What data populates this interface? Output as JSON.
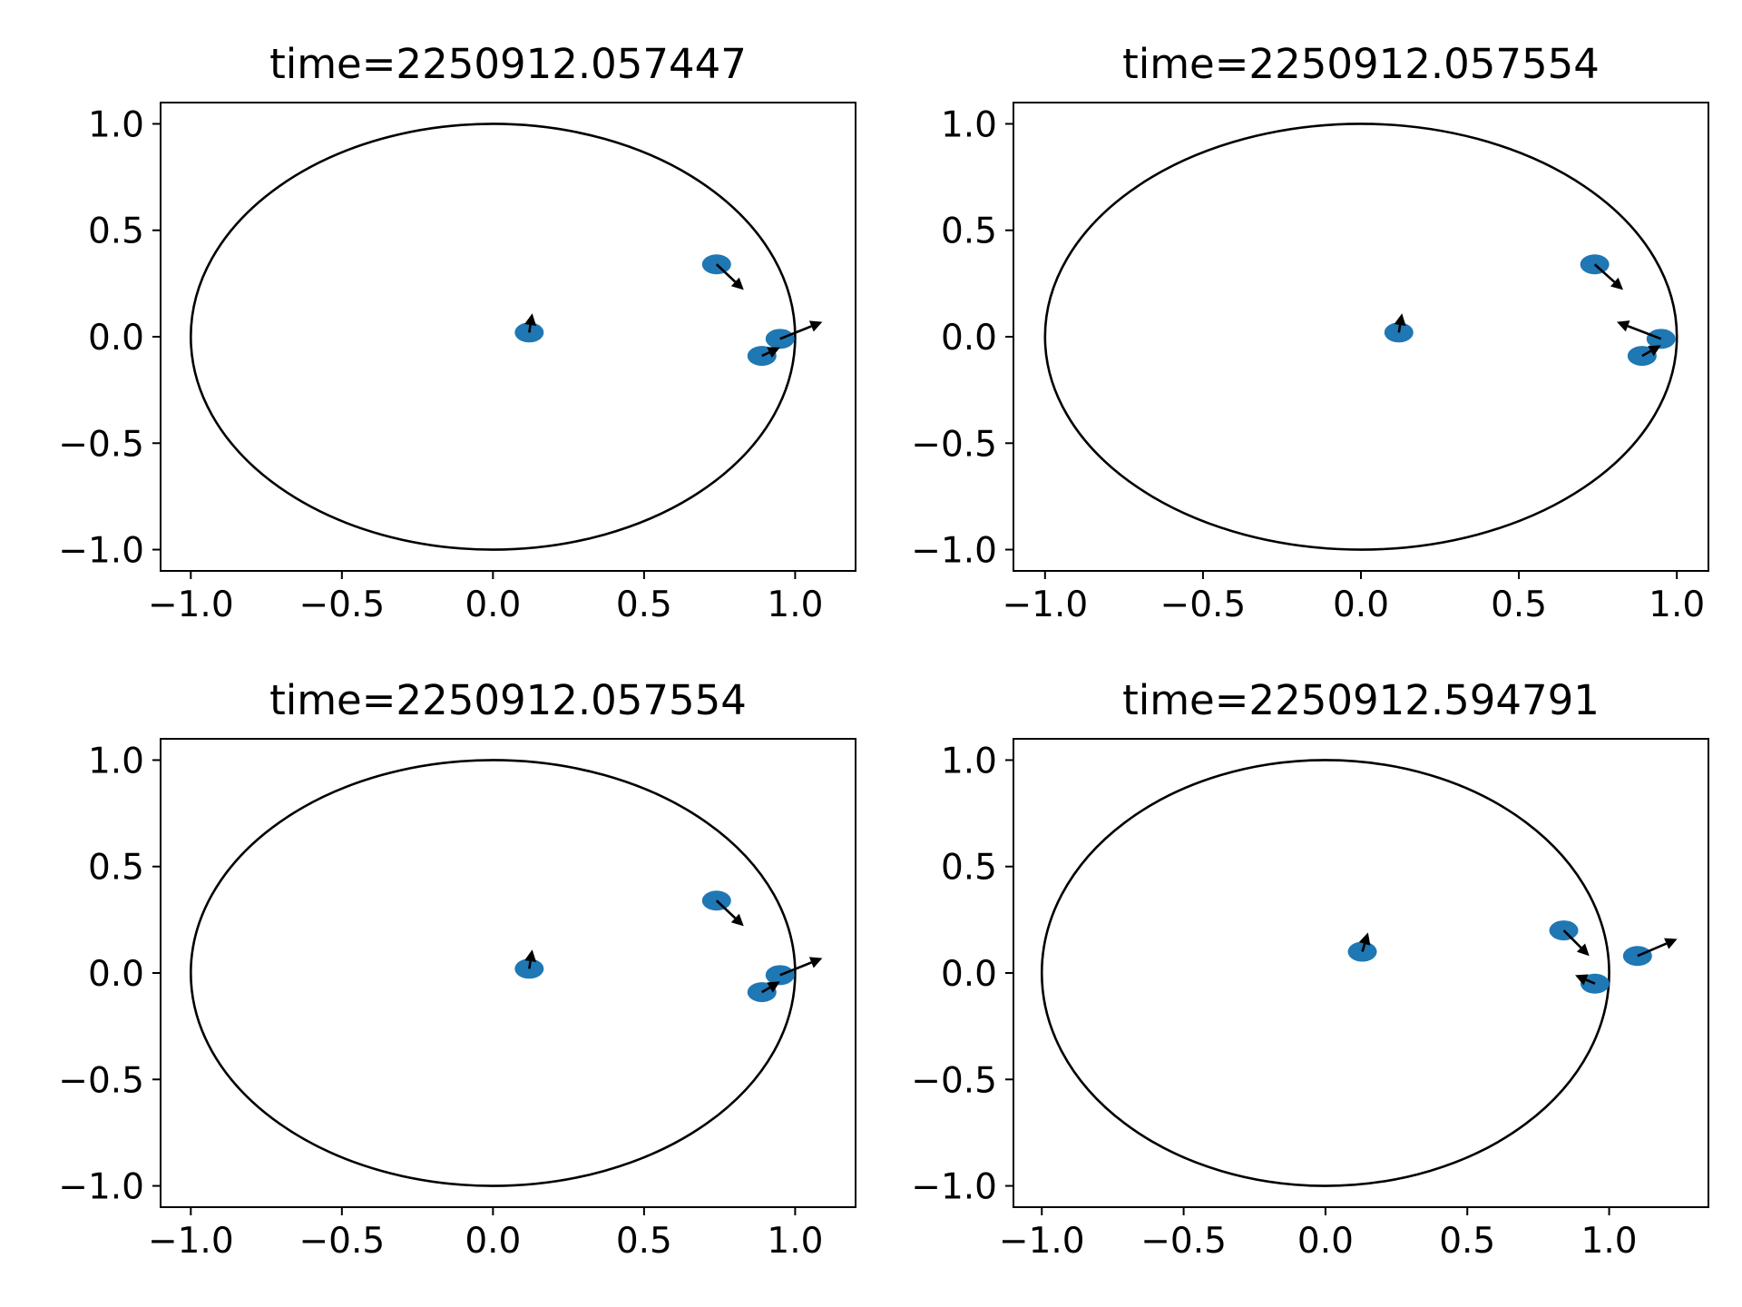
{
  "figure": {
    "marker_color": "#1f77b4",
    "arrow_color": "#000000",
    "circle_color": "#000000"
  },
  "chart_data": [
    {
      "type": "scatter",
      "title": "time=2250912.057447",
      "xlim": [
        -1.1,
        1.2
      ],
      "ylim": [
        -1.1,
        1.1
      ],
      "xticks": [
        -1.0,
        -0.5,
        0.0,
        0.5,
        1.0
      ],
      "yticks": [
        -1.0,
        -0.5,
        0.0,
        0.5,
        1.0
      ],
      "xtick_labels": [
        "−1.0",
        "−0.5",
        "0.0",
        "0.5",
        "1.0"
      ],
      "ytick_labels": [
        "−1.0",
        "−0.5",
        "0.0",
        "0.5",
        "1.0"
      ],
      "boundary_circle": {
        "center": [
          0,
          0
        ],
        "radius": 1.0
      },
      "particles": [
        {
          "x": 0.12,
          "y": 0.02,
          "u": 0.01,
          "v": 0.09
        },
        {
          "x": 0.74,
          "y": 0.34,
          "u": 0.09,
          "v": -0.12
        },
        {
          "x": 0.89,
          "y": -0.09,
          "u": 0.06,
          "v": 0.04
        },
        {
          "x": 0.95,
          "y": -0.01,
          "u": 0.14,
          "v": 0.08
        }
      ]
    },
    {
      "type": "scatter",
      "title": "time=2250912.057554",
      "xlim": [
        -1.1,
        1.1
      ],
      "ylim": [
        -1.1,
        1.1
      ],
      "xticks": [
        -1.0,
        -0.5,
        0.0,
        0.5,
        1.0
      ],
      "yticks": [
        -1.0,
        -0.5,
        0.0,
        0.5,
        1.0
      ],
      "xtick_labels": [
        "−1.0",
        "−0.5",
        "0.0",
        "0.5",
        "1.0"
      ],
      "ytick_labels": [
        "−1.0",
        "−0.5",
        "0.0",
        "0.5",
        "1.0"
      ],
      "boundary_circle": {
        "center": [
          0,
          0
        ],
        "radius": 1.0
      },
      "particles": [
        {
          "x": 0.12,
          "y": 0.02,
          "u": 0.01,
          "v": 0.09
        },
        {
          "x": 0.74,
          "y": 0.34,
          "u": 0.09,
          "v": -0.12
        },
        {
          "x": 0.89,
          "y": -0.09,
          "u": 0.06,
          "v": 0.05
        },
        {
          "x": 0.95,
          "y": -0.01,
          "u": -0.14,
          "v": 0.08
        }
      ]
    },
    {
      "type": "scatter",
      "title": "time=2250912.057554",
      "xlim": [
        -1.1,
        1.2
      ],
      "ylim": [
        -1.1,
        1.1
      ],
      "xticks": [
        -1.0,
        -0.5,
        0.0,
        0.5,
        1.0
      ],
      "yticks": [
        -1.0,
        -0.5,
        0.0,
        0.5,
        1.0
      ],
      "xtick_labels": [
        "−1.0",
        "−0.5",
        "0.0",
        "0.5",
        "1.0"
      ],
      "ytick_labels": [
        "−1.0",
        "−0.5",
        "0.0",
        "0.5",
        "1.0"
      ],
      "boundary_circle": {
        "center": [
          0,
          0
        ],
        "radius": 1.0
      },
      "particles": [
        {
          "x": 0.12,
          "y": 0.02,
          "u": 0.01,
          "v": 0.09
        },
        {
          "x": 0.74,
          "y": 0.34,
          "u": 0.09,
          "v": -0.12
        },
        {
          "x": 0.89,
          "y": -0.09,
          "u": 0.06,
          "v": 0.05
        },
        {
          "x": 0.95,
          "y": -0.01,
          "u": 0.14,
          "v": 0.08
        }
      ]
    },
    {
      "type": "scatter",
      "title": "time=2250912.594791",
      "xlim": [
        -1.1,
        1.35
      ],
      "ylim": [
        -1.1,
        1.1
      ],
      "xticks": [
        -1.0,
        -0.5,
        0.0,
        0.5,
        1.0
      ],
      "yticks": [
        -1.0,
        -0.5,
        0.0,
        0.5,
        1.0
      ],
      "xtick_labels": [
        "−1.0",
        "−0.5",
        "0.0",
        "0.5",
        "1.0"
      ],
      "ytick_labels": [
        "−1.0",
        "−0.5",
        "0.0",
        "0.5",
        "1.0"
      ],
      "boundary_circle": {
        "center": [
          0,
          0
        ],
        "radius": 1.0
      },
      "particles": [
        {
          "x": 0.13,
          "y": 0.1,
          "u": 0.02,
          "v": 0.09
        },
        {
          "x": 0.84,
          "y": 0.2,
          "u": 0.09,
          "v": -0.12
        },
        {
          "x": 0.95,
          "y": -0.05,
          "u": -0.07,
          "v": 0.04
        },
        {
          "x": 1.1,
          "y": 0.08,
          "u": 0.14,
          "v": 0.08
        }
      ]
    }
  ]
}
